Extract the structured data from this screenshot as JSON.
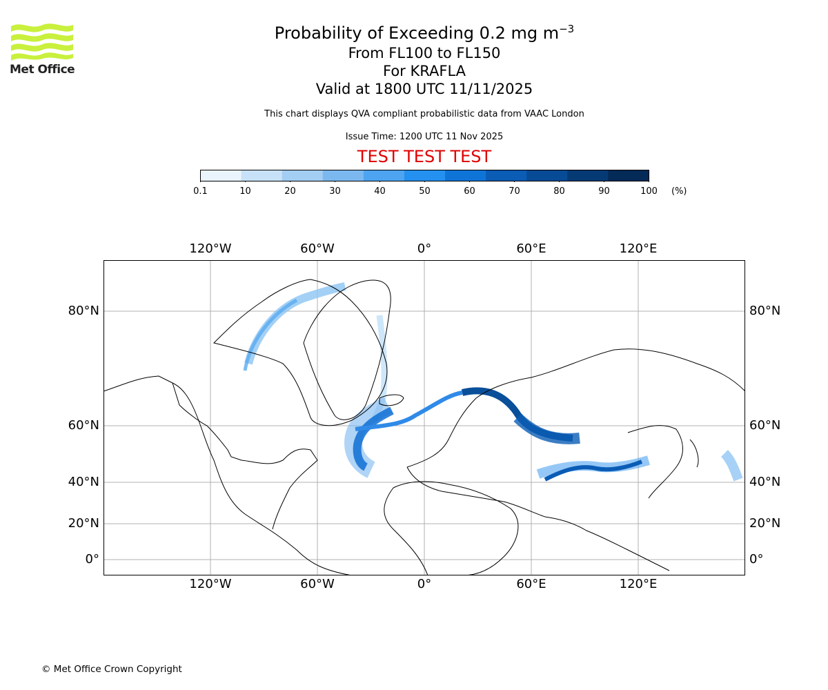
{
  "header": {
    "title_main": "Probability of Exceeding 0.2 mg m",
    "title_sup": "−3",
    "flight_levels": "From FL100 to FL150",
    "volcano": "For KRAFLA",
    "valid_time": "Valid at 1800 UTC 11/11/2025",
    "description": "This chart displays QVA compliant probabilistic data from VAAC London",
    "issue_time": "Issue Time: 1200 UTC 11 Nov 2025",
    "test_banner": "TEST TEST TEST"
  },
  "logo": {
    "text": "Met Office",
    "color": "#c8f03c"
  },
  "colorbar": {
    "labels": [
      "0.1",
      "10",
      "20",
      "30",
      "40",
      "50",
      "60",
      "70",
      "80",
      "90",
      "100"
    ],
    "unit": "(%)",
    "colors": [
      "#eaf4fd",
      "#c7e2f8",
      "#a3cdf3",
      "#7cb8f0",
      "#4ea4f0",
      "#2490ef",
      "#0f74d8",
      "#0a5cb5",
      "#074b96",
      "#053a74",
      "#042a57"
    ]
  },
  "map": {
    "lon_labels": [
      "120°W",
      "60°W",
      "0°",
      "60°E",
      "120°E"
    ],
    "lat_labels": [
      "80°N",
      "60°N",
      "40°N",
      "20°N",
      "0°"
    ]
  },
  "footer": {
    "copyright": "© Met Office Crown Copyright"
  }
}
